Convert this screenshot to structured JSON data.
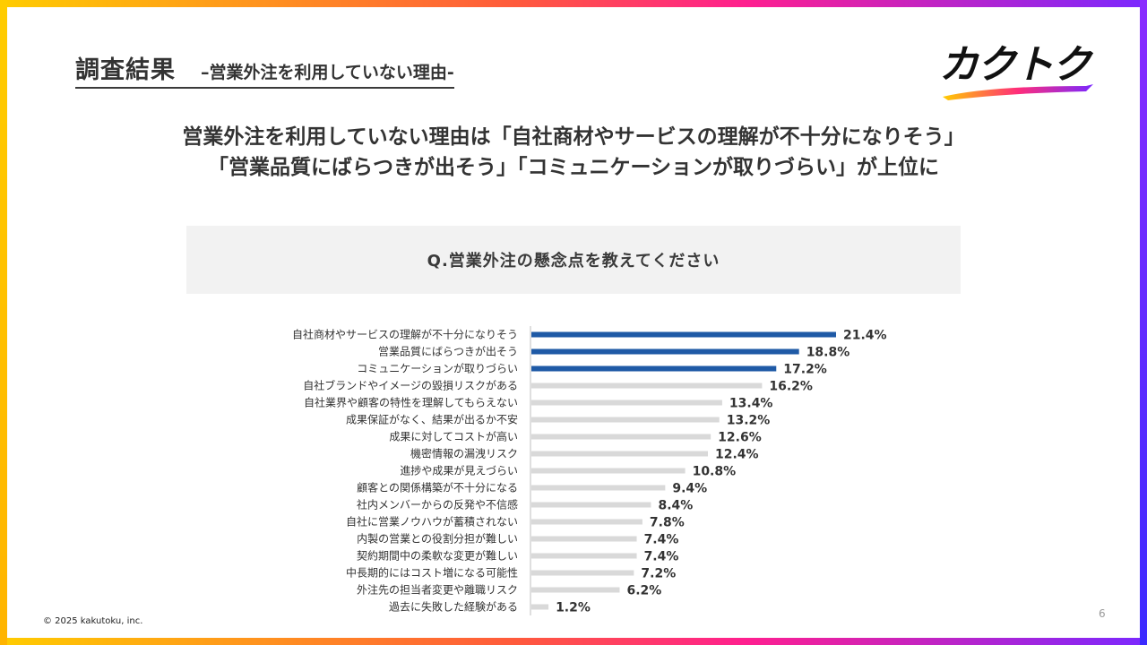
{
  "header": {
    "title": "調査結果",
    "subtitle": "–営業外注を利用していない理由-"
  },
  "logo": {
    "text": "カクトク"
  },
  "headline": {
    "line1": "営業外注を利用していない理由は「自社商材やサービスの理解が不十分になりそう」",
    "line2": "「営業品質にばらつきが出そう」「コミュニケーションが取りづらい」が上位に"
  },
  "question": "Q.営業外注の懸念点を教えてください",
  "footer": {
    "copyright": "© 2025 kakutoku, inc.",
    "page": "6"
  },
  "colors": {
    "highlight": "#1f5aa6",
    "bar": "#d9d9d9",
    "brand_gradient": [
      "#ffcc00",
      "#ff2d7a",
      "#7a28ff"
    ]
  },
  "chart_data": {
    "type": "bar",
    "orientation": "horizontal",
    "title": "Q.営業外注の懸念点を教えてください",
    "categories": [
      "自社商材やサービスの理解が不十分になりそう",
      "営業品質にばらつきが出そう",
      "コミュニケーションが取りづらい",
      "自社ブランドやイメージの毀損リスクがある",
      "自社業界や顧客の特性を理解してもらえない",
      "成果保証がなく、結果が出るか不安",
      "成果に対してコストが高い",
      "機密情報の漏洩リスク",
      "進捗や成果が見えづらい",
      "顧客との関係構築が不十分になる",
      "社内メンバーからの反発や不信感",
      "自社に営業ノウハウが蓄積されない",
      "内製の営業との役割分担が難しい",
      "契約期間中の柔軟な変更が難しい",
      "中長期的にはコスト増になる可能性",
      "外注先の担当者変更や離職リスク",
      "過去に失敗した経験がある"
    ],
    "values": [
      21.4,
      18.8,
      17.2,
      16.2,
      13.4,
      13.2,
      12.6,
      12.4,
      10.8,
      9.4,
      8.4,
      7.8,
      7.4,
      7.4,
      7.2,
      6.2,
      1.2
    ],
    "labels": [
      "21.4%",
      "18.8%",
      "17.2%",
      "16.2%",
      "13.4%",
      "13.2%",
      "12.6%",
      "12.4%",
      "10.8%",
      "9.4%",
      "8.4%",
      "7.8%",
      "7.4%",
      "7.4%",
      "7.2%",
      "6.2%",
      "1.2%"
    ],
    "highlighted_top": 3,
    "unit": "%",
    "xlim": [
      0,
      25
    ]
  }
}
